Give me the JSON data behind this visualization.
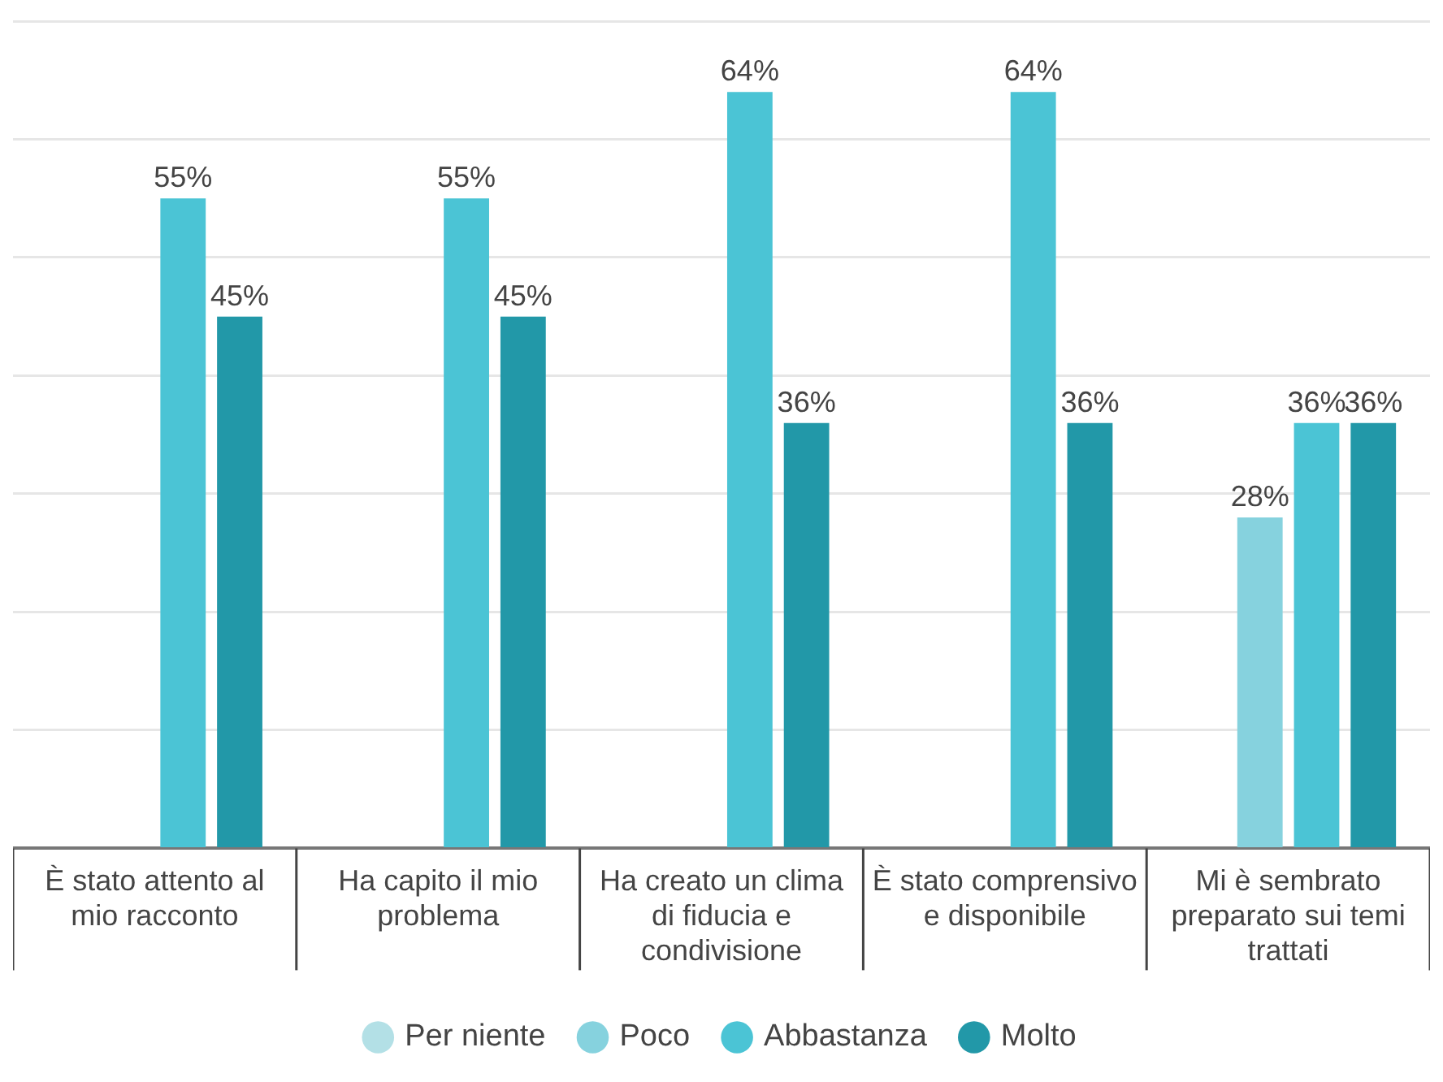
{
  "chart_data": {
    "type": "bar",
    "categories": [
      "È stato attento al mio racconto",
      "Ha capito il mio problema",
      "Ha creato un clima di fiducia e condivisione",
      "È stato comprensivo e disponibile",
      "Mi è sembrato preparato sui temi trattati"
    ],
    "series": [
      {
        "name": "Per niente",
        "color": "#b3e0e6",
        "values": [
          null,
          null,
          null,
          null,
          null
        ],
        "value_labels": [
          null,
          null,
          null,
          null,
          null
        ]
      },
      {
        "name": "Poco",
        "color": "#86d2de",
        "values": [
          null,
          null,
          null,
          null,
          28
        ],
        "value_labels": [
          null,
          null,
          null,
          null,
          "28%"
        ]
      },
      {
        "name": "Abbastanza",
        "color": "#4bc4d5",
        "values": [
          55,
          55,
          64,
          64,
          36
        ],
        "value_labels": [
          "55%",
          "55%",
          "64%",
          "64%",
          "36%"
        ]
      },
      {
        "name": "Molto",
        "color": "#2298a8",
        "values": [
          45,
          45,
          36,
          36,
          36
        ],
        "value_labels": [
          "45%",
          "45%",
          "36%",
          "36%",
          "36%"
        ]
      }
    ],
    "ylim": [
      0,
      70
    ],
    "yticks": [
      {
        "value": 0,
        "label": null
      },
      {
        "value": 10,
        "label": null
      },
      {
        "value": 20,
        "label": null
      },
      {
        "value": 30,
        "label": null
      },
      {
        "value": 40,
        "label": null
      },
      {
        "value": 50,
        "label": null
      },
      {
        "value": 60,
        "label": null
      },
      {
        "value": 70,
        "label": null
      }
    ],
    "tick_labels": "x",
    "grid": "y",
    "legend": "bottom"
  }
}
